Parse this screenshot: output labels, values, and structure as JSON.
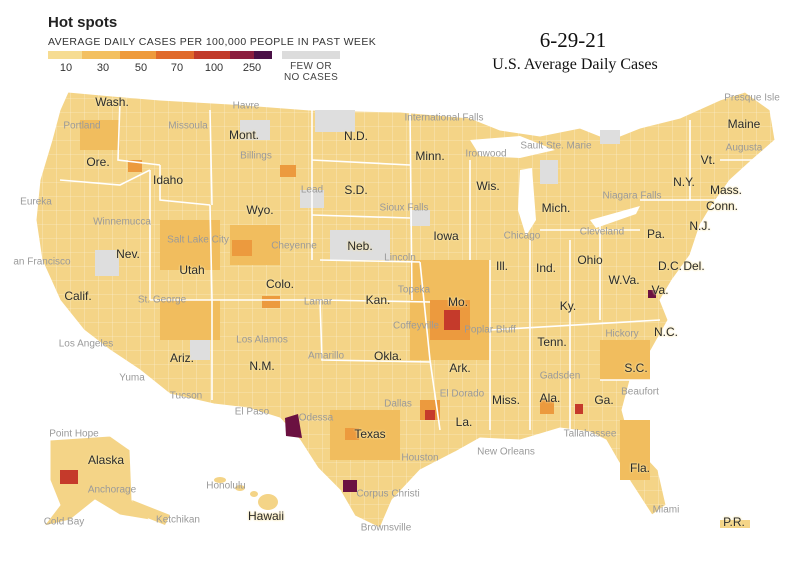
{
  "legend": {
    "title": "Hot spots",
    "subtitle": "AVERAGE DAILY CASES PER 100,000 PEOPLE IN PAST WEEK",
    "ticks": [
      "10",
      "30",
      "50",
      "70",
      "100",
      "250"
    ],
    "no_cases_label": "FEW OR NO CASES",
    "colors": [
      "#f6dc92",
      "#f3c060",
      "#ee9a3c",
      "#e06a2b",
      "#c13b2a",
      "#8b1e3f",
      "#4a1046",
      "#dcdcdc"
    ]
  },
  "header": {
    "date": "6-29-21",
    "title": "U.S. Average Daily Cases"
  },
  "states": {
    "wash": "Wash.",
    "ore": "Ore.",
    "idaho": "Idaho",
    "mont": "Mont.",
    "wyo": "Wyo.",
    "nev": "Nev.",
    "calif": "Calif.",
    "utah": "Utah",
    "colo": "Colo.",
    "ariz": "Ariz.",
    "nm": "N.M.",
    "nd": "N.D.",
    "sd": "S.D.",
    "neb": "Neb.",
    "kan": "Kan.",
    "okla": "Okla.",
    "texas": "Texas",
    "minn": "Minn.",
    "iowa": "Iowa",
    "mo": "Mo.",
    "ark": "Ark.",
    "la": "La.",
    "wis": "Wis.",
    "ill": "Ill.",
    "mich": "Mich.",
    "ind": "Ind.",
    "ohio": "Ohio",
    "ky": "Ky.",
    "tenn": "Tenn.",
    "miss": "Miss.",
    "ala": "Ala.",
    "ga": "Ga.",
    "fla": "Fla.",
    "sc": "S.C.",
    "nc": "N.C.",
    "va": "Va.",
    "wva": "W.Va.",
    "pa": "Pa.",
    "ny": "N.Y.",
    "vt": "Vt.",
    "maine": "Maine",
    "mass": "Mass.",
    "conn": "Conn.",
    "nj": "N.J.",
    "dc": "D.C.",
    "del": "Del.",
    "alaska": "Alaska",
    "hawaii": "Hawaii",
    "pr": "P.R."
  },
  "cities": {
    "presque_isle": "Presque Isle",
    "augusta": "Augusta",
    "international_falls": "International Falls",
    "havre": "Havre",
    "portland": "Portland",
    "missoula": "Missoula",
    "billings": "Billings",
    "lead": "Lead",
    "sault_ste_marie": "Sault Ste. Marie",
    "ironwood": "Ironwood",
    "niagara_falls": "Niagara Falls",
    "sioux_falls": "Sioux Falls",
    "eureka": "Eureka",
    "winnemucca": "Winnemucca",
    "salt_lake_city": "Salt Lake City",
    "cheyenne": "Cheyenne",
    "chicago": "Chicago",
    "cleveland": "Cleveland",
    "san_francisco": "an Francisco",
    "lincoln": "Lincoln",
    "topeka": "Topeka",
    "st_george": "St. George",
    "lamar": "Lamar",
    "coffeyville": "Coffeyville",
    "poplar_bluff": "Poplar Bluff",
    "hickory": "Hickory",
    "los_angeles": "Los Angeles",
    "los_alamos": "Los Alamos",
    "amarillo": "Amarillo",
    "gadsden": "Gadsden",
    "beaufort": "Beaufort",
    "yuma": "Yuma",
    "tucson": "Tucson",
    "el_paso": "El Paso",
    "odessa": "Odessa",
    "dallas": "Dallas",
    "el_dorado": "El Dorado",
    "tallahassee": "Tallahassee",
    "point_hope": "Point Hope",
    "houston": "Houston",
    "new_orleans": "New Orleans",
    "anchorage": "Anchorage",
    "honolulu": "Honolulu",
    "corpus_christi": "Corpus Christi",
    "miami": "Miami",
    "cold_bay": "Cold Bay",
    "ketchikan": "Ketchikan",
    "brownsville": "Brownsville"
  }
}
